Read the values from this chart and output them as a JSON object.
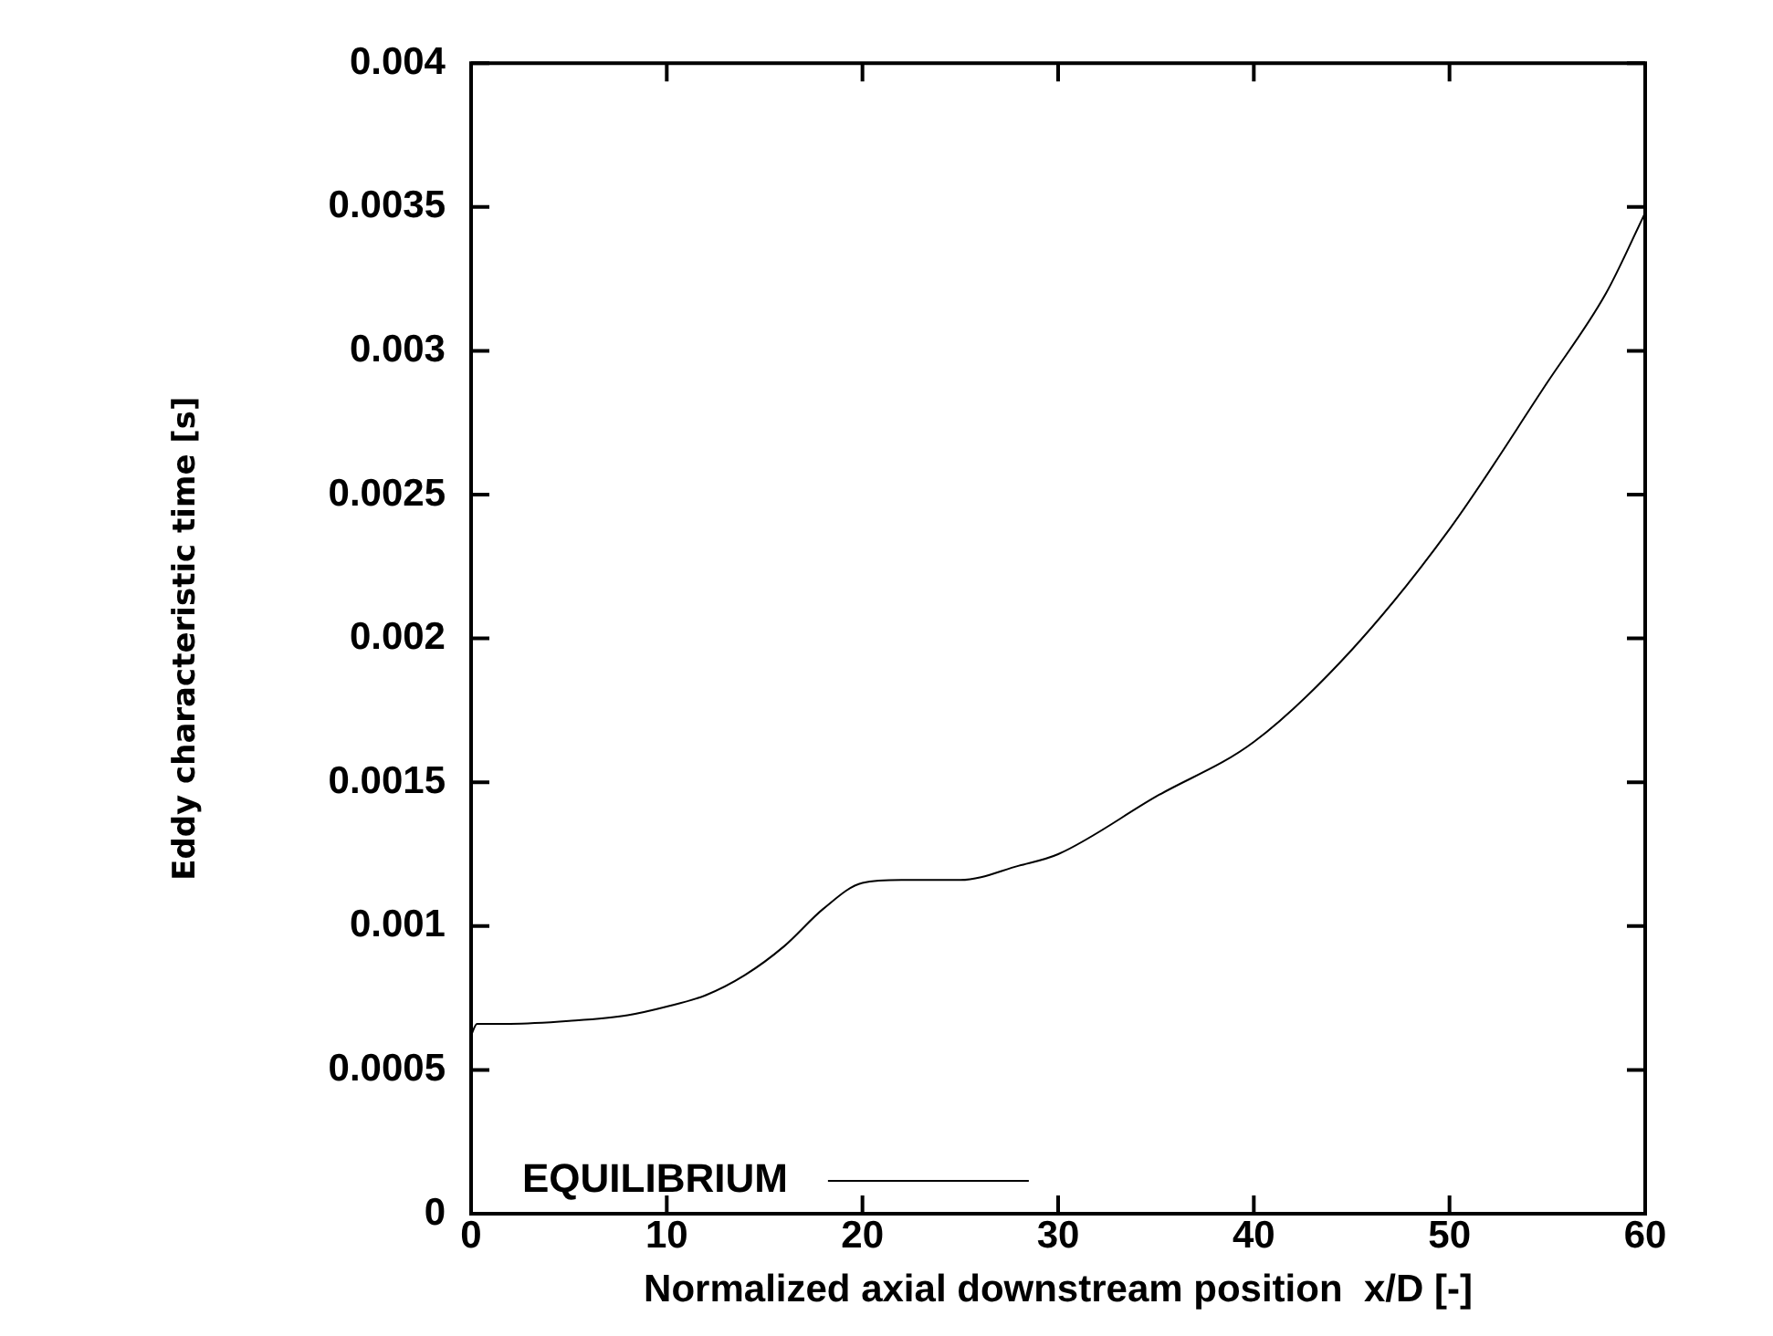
{
  "chart_data": {
    "type": "line",
    "xlabel": "Normalized axial downstream position  x/D [-]",
    "ylabel": "Eddy characteristic time [s]",
    "xlim": [
      0,
      60
    ],
    "xticks": [
      0,
      10,
      20,
      30,
      40,
      50,
      60
    ],
    "ylim": [
      0,
      0.004
    ],
    "yticks": [
      0,
      0.0005,
      0.001,
      0.0015,
      0.002,
      0.0025,
      0.003,
      0.0035,
      0.004
    ],
    "legend": "bottom left",
    "marker": "none",
    "line_style": "solid",
    "series": [
      {
        "name": "EQUILIBRIUM",
        "color": "#000000",
        "x": [
          0,
          0.3,
          2,
          5,
          8,
          10,
          12,
          14,
          16,
          18,
          20,
          22,
          25,
          28,
          30,
          35,
          40,
          45,
          50,
          55,
          58,
          60
        ],
        "values": [
          0.00062,
          0.00066,
          0.00066,
          0.00067,
          0.00069,
          0.00072,
          0.00076,
          0.00083,
          0.00093,
          0.00106,
          0.00115,
          0.00116,
          0.00116,
          0.00121,
          0.00125,
          0.00145,
          0.00164,
          0.00196,
          0.00238,
          0.00289,
          0.0032,
          0.00348
        ]
      }
    ]
  }
}
